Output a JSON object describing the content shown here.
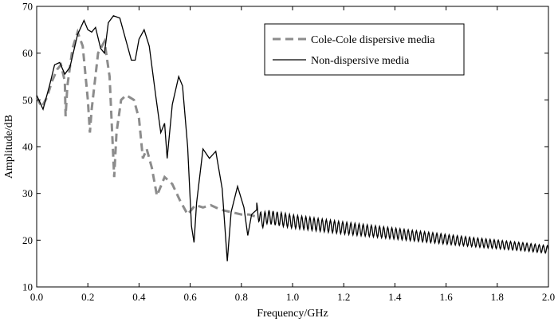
{
  "chart_data": {
    "type": "line",
    "title": "",
    "xlabel": "Frequency/GHz",
    "ylabel": "Amplitude/dB",
    "xlim": [
      0.0,
      2.0
    ],
    "ylim": [
      10,
      70
    ],
    "x_ticks": [
      "0.0",
      "0.2",
      "0.4",
      "0.6",
      "0.8",
      "1.0",
      "1.2",
      "1.4",
      "1.6",
      "1.8",
      "2.0"
    ],
    "y_ticks": [
      "10",
      "20",
      "30",
      "40",
      "50",
      "60",
      "70"
    ],
    "grid": false,
    "legend_position": "top-right",
    "series": [
      {
        "name": "Cole-Cole dispersive media",
        "style": "dashed",
        "color": "#8c8c8c",
        "points": [
          [
            0.0,
            50.5
          ],
          [
            0.02,
            48.5
          ],
          [
            0.04,
            50.5
          ],
          [
            0.06,
            54.0
          ],
          [
            0.08,
            56.5
          ],
          [
            0.095,
            57.5
          ],
          [
            0.11,
            54.0
          ],
          [
            0.113,
            46.5
          ],
          [
            0.12,
            53.0
          ],
          [
            0.14,
            61.0
          ],
          [
            0.16,
            64.5
          ],
          [
            0.18,
            61.5
          ],
          [
            0.2,
            50.0
          ],
          [
            0.208,
            43.0
          ],
          [
            0.215,
            48.0
          ],
          [
            0.24,
            60.0
          ],
          [
            0.265,
            62.5
          ],
          [
            0.285,
            55.0
          ],
          [
            0.295,
            43.0
          ],
          [
            0.303,
            33.5
          ],
          [
            0.312,
            43.0
          ],
          [
            0.33,
            50.0
          ],
          [
            0.35,
            51.0
          ],
          [
            0.38,
            50.0
          ],
          [
            0.4,
            46.0
          ],
          [
            0.415,
            37.5
          ],
          [
            0.43,
            39.5
          ],
          [
            0.45,
            35.5
          ],
          [
            0.47,
            29.5
          ],
          [
            0.5,
            33.5
          ],
          [
            0.53,
            32.0
          ],
          [
            0.56,
            28.5
          ],
          [
            0.59,
            25.5
          ],
          [
            0.62,
            27.5
          ],
          [
            0.65,
            27.0
          ],
          [
            0.68,
            27.5
          ],
          [
            0.72,
            26.5
          ],
          [
            0.76,
            26.0
          ],
          [
            0.8,
            25.5
          ],
          [
            0.83,
            25.5
          ],
          [
            0.86,
            25.0
          ]
        ]
      },
      {
        "name": "Non-dispersive media",
        "style": "solid",
        "color": "#000000",
        "points": [
          [
            0.0,
            51.0
          ],
          [
            0.025,
            48.0
          ],
          [
            0.05,
            53.0
          ],
          [
            0.07,
            57.5
          ],
          [
            0.09,
            58.0
          ],
          [
            0.11,
            55.5
          ],
          [
            0.13,
            57.0
          ],
          [
            0.16,
            64.0
          ],
          [
            0.185,
            67.0
          ],
          [
            0.2,
            65.0
          ],
          [
            0.215,
            64.5
          ],
          [
            0.23,
            65.5
          ],
          [
            0.25,
            61.0
          ],
          [
            0.265,
            60.0
          ],
          [
            0.28,
            66.5
          ],
          [
            0.3,
            68.0
          ],
          [
            0.325,
            67.5
          ],
          [
            0.35,
            62.5
          ],
          [
            0.37,
            58.5
          ],
          [
            0.385,
            58.5
          ],
          [
            0.4,
            63.0
          ],
          [
            0.42,
            65.0
          ],
          [
            0.44,
            61.5
          ],
          [
            0.465,
            51.0
          ],
          [
            0.485,
            43.0
          ],
          [
            0.5,
            45.0
          ],
          [
            0.51,
            37.5
          ],
          [
            0.53,
            49.0
          ],
          [
            0.555,
            55.0
          ],
          [
            0.57,
            53.0
          ],
          [
            0.59,
            40.0
          ],
          [
            0.605,
            23.0
          ],
          [
            0.615,
            19.5
          ],
          [
            0.625,
            28.0
          ],
          [
            0.65,
            39.5
          ],
          [
            0.675,
            37.5
          ],
          [
            0.7,
            39.0
          ],
          [
            0.725,
            31.0
          ],
          [
            0.745,
            15.5
          ],
          [
            0.76,
            26.0
          ],
          [
            0.785,
            31.5
          ],
          [
            0.81,
            27.0
          ],
          [
            0.825,
            21.0
          ],
          [
            0.84,
            25.5
          ],
          [
            0.86,
            26.5
          ],
          [
            0.88,
            24.0
          ],
          [
            0.9,
            25.0
          ],
          [
            0.95,
            24.5
          ],
          [
            1.0,
            24.0
          ],
          [
            1.1,
            23.3
          ],
          [
            1.2,
            22.6
          ],
          [
            1.3,
            22.0
          ],
          [
            1.4,
            21.4
          ],
          [
            1.5,
            20.8
          ],
          [
            1.6,
            20.2
          ],
          [
            1.7,
            19.6
          ],
          [
            1.8,
            19.1
          ],
          [
            1.9,
            18.6
          ],
          [
            2.0,
            18.0
          ]
        ],
        "ripple": {
          "start": 0.86,
          "end": 2.0,
          "period": 0.016,
          "amplitude_start": 1.5,
          "amplitude_end": 0.8
        }
      }
    ]
  }
}
